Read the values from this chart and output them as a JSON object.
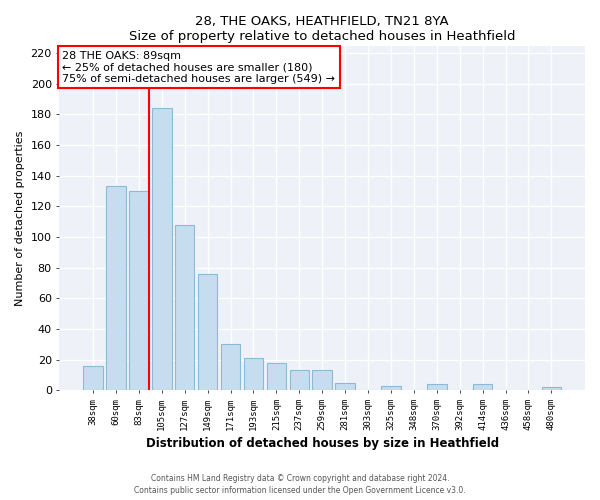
{
  "title": "28, THE OAKS, HEATHFIELD, TN21 8YA",
  "subtitle": "Size of property relative to detached houses in Heathfield",
  "xlabel": "Distribution of detached houses by size in Heathfield",
  "ylabel": "Number of detached properties",
  "bar_color": "#c5ddef",
  "bar_edge_color": "#8bbbd8",
  "categories": [
    "38sqm",
    "60sqm",
    "83sqm",
    "105sqm",
    "127sqm",
    "149sqm",
    "171sqm",
    "193sqm",
    "215sqm",
    "237sqm",
    "259sqm",
    "281sqm",
    "303sqm",
    "325sqm",
    "348sqm",
    "370sqm",
    "392sqm",
    "414sqm",
    "436sqm",
    "458sqm",
    "480sqm"
  ],
  "values": [
    16,
    133,
    130,
    184,
    108,
    76,
    30,
    21,
    18,
    13,
    13,
    5,
    0,
    3,
    0,
    4,
    0,
    4,
    0,
    0,
    2
  ],
  "ylim": [
    0,
    225
  ],
  "yticks": [
    0,
    20,
    40,
    60,
    80,
    100,
    120,
    140,
    160,
    180,
    200,
    220
  ],
  "red_line_index": 2,
  "annotation_title": "28 THE OAKS: 89sqm",
  "annotation_line1": "← 25% of detached houses are smaller (180)",
  "annotation_line2": "75% of semi-detached houses are larger (549) →",
  "footer_line1": "Contains HM Land Registry data © Crown copyright and database right 2024.",
  "footer_line2": "Contains public sector information licensed under the Open Government Licence v3.0.",
  "background_color": "#eef2f8",
  "grid_color": "#ffffff"
}
